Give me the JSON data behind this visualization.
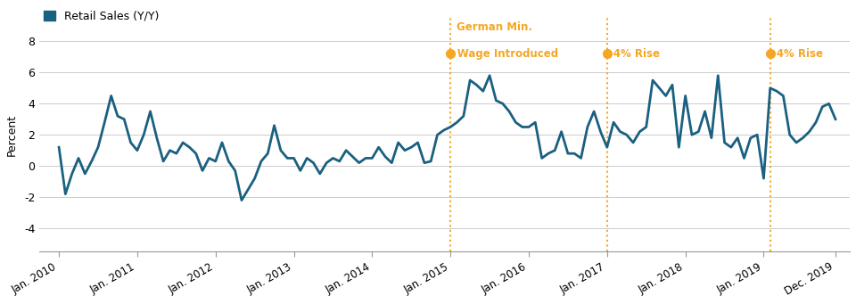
{
  "ylabel": "Percent",
  "line_color": "#1a6080",
  "line_width": 2.0,
  "background_color": "#ffffff",
  "legend_label": "Retail Sales (Y/Y)",
  "annotation_color": "#f5a623",
  "yticks": [
    -4,
    -2,
    0,
    2,
    4,
    6,
    8
  ],
  "ylim": [
    -5.5,
    9.5
  ],
  "xtick_labels": [
    "Jan. 2010",
    "Jan. 2011",
    "Jan. 2012",
    "Jan. 2013",
    "Jan. 2014",
    "Jan. 2015",
    "Jan. 2016",
    "Jan. 2017",
    "Jan. 2018",
    "Jan. 2019",
    "Dec. 2019"
  ],
  "xtick_positions": [
    2010.0,
    2011.0,
    2012.0,
    2013.0,
    2014.0,
    2015.0,
    2016.0,
    2017.0,
    2018.0,
    2019.0,
    2019.917
  ],
  "vlines": [
    2015.0,
    2017.0,
    2019.083
  ],
  "ann1_x": 2015.0,
  "ann2_x": 2017.0,
  "ann3_x": 2019.083,
  "data": {
    "dates": [
      2010.0,
      2010.083,
      2010.167,
      2010.25,
      2010.333,
      2010.417,
      2010.5,
      2010.583,
      2010.667,
      2010.75,
      2010.833,
      2010.917,
      2011.0,
      2011.083,
      2011.167,
      2011.25,
      2011.333,
      2011.417,
      2011.5,
      2011.583,
      2011.667,
      2011.75,
      2011.833,
      2011.917,
      2012.0,
      2012.083,
      2012.167,
      2012.25,
      2012.333,
      2012.417,
      2012.5,
      2012.583,
      2012.667,
      2012.75,
      2012.833,
      2012.917,
      2013.0,
      2013.083,
      2013.167,
      2013.25,
      2013.333,
      2013.417,
      2013.5,
      2013.583,
      2013.667,
      2013.75,
      2013.833,
      2013.917,
      2014.0,
      2014.083,
      2014.167,
      2014.25,
      2014.333,
      2014.417,
      2014.5,
      2014.583,
      2014.667,
      2014.75,
      2014.833,
      2014.917,
      2015.0,
      2015.083,
      2015.167,
      2015.25,
      2015.333,
      2015.417,
      2015.5,
      2015.583,
      2015.667,
      2015.75,
      2015.833,
      2015.917,
      2016.0,
      2016.083,
      2016.167,
      2016.25,
      2016.333,
      2016.417,
      2016.5,
      2016.583,
      2016.667,
      2016.75,
      2016.833,
      2016.917,
      2017.0,
      2017.083,
      2017.167,
      2017.25,
      2017.333,
      2017.417,
      2017.5,
      2017.583,
      2017.667,
      2017.75,
      2017.833,
      2017.917,
      2018.0,
      2018.083,
      2018.167,
      2018.25,
      2018.333,
      2018.417,
      2018.5,
      2018.583,
      2018.667,
      2018.75,
      2018.833,
      2018.917,
      2019.0,
      2019.083,
      2019.167,
      2019.25,
      2019.333,
      2019.417,
      2019.5,
      2019.583,
      2019.667,
      2019.75,
      2019.833,
      2019.917
    ],
    "values": [
      1.2,
      -1.8,
      -0.5,
      0.5,
      -0.5,
      0.3,
      1.2,
      2.8,
      4.5,
      3.2,
      3.0,
      1.5,
      1.0,
      2.0,
      3.5,
      1.8,
      0.3,
      1.0,
      0.8,
      1.5,
      1.2,
      0.8,
      -0.3,
      0.5,
      0.3,
      1.5,
      0.3,
      -0.3,
      -2.2,
      -1.5,
      -0.8,
      0.3,
      0.8,
      2.6,
      1.0,
      0.5,
      0.5,
      -0.3,
      0.5,
      0.2,
      -0.5,
      0.2,
      0.5,
      0.3,
      1.0,
      0.6,
      0.2,
      0.5,
      0.5,
      1.2,
      0.6,
      0.2,
      1.5,
      1.0,
      1.2,
      1.5,
      0.2,
      0.3,
      2.0,
      2.3,
      2.5,
      2.8,
      3.2,
      5.5,
      5.2,
      4.8,
      5.8,
      4.2,
      4.0,
      3.5,
      2.8,
      2.5,
      2.5,
      2.8,
      0.5,
      0.8,
      1.0,
      2.2,
      0.8,
      0.8,
      0.5,
      2.5,
      3.5,
      2.2,
      1.2,
      2.8,
      2.2,
      2.0,
      1.5,
      2.2,
      2.5,
      5.5,
      5.0,
      4.5,
      5.2,
      1.2,
      4.5,
      2.0,
      2.2,
      3.5,
      1.8,
      5.8,
      1.5,
      1.2,
      1.8,
      0.5,
      1.8,
      2.0,
      -0.8,
      5.0,
      4.8,
      4.5,
      2.0,
      1.5,
      1.8,
      2.2,
      2.8,
      3.8,
      4.0,
      3.0
    ]
  }
}
